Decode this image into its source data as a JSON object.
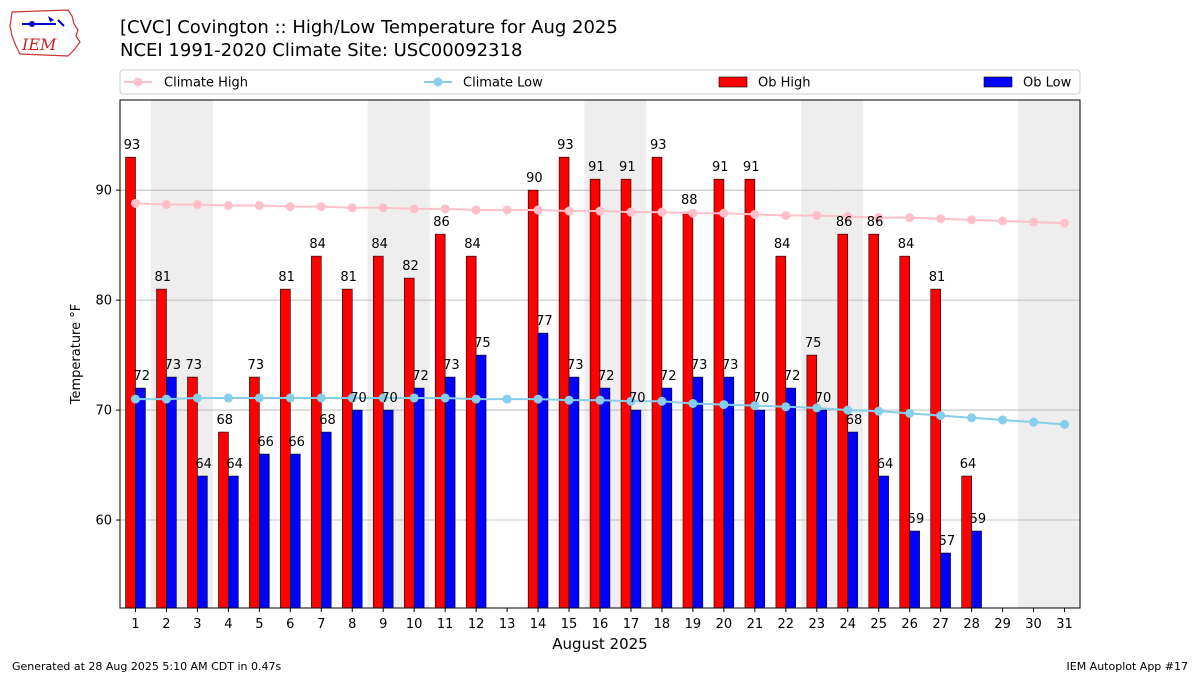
{
  "header": {
    "title_line1": "[CVC] Covington :: High/Low Temperature for Aug 2025",
    "title_line2": "NCEI 1991-2020 Climate Site: USC00092318",
    "logo_text": "IEM"
  },
  "footer": {
    "generated": "Generated at 28 Aug 2025 5:10 AM CDT in 0.47s",
    "app": "IEM Autoplot App #17"
  },
  "colors": {
    "ob_high": "#ff0000",
    "ob_low": "#0000ff",
    "climate_high": "#ffc0cb",
    "climate_low": "#87ceeb",
    "weekend_shade": "#eeeeee",
    "grid": "#b0b0b0"
  },
  "chart_data": {
    "type": "bar",
    "title": "[CVC] Covington :: High/Low Temperature for Aug 2025",
    "xlabel": "August 2025",
    "ylabel": "Temperature °F",
    "ylim": [
      52,
      98.2
    ],
    "yticks": [
      60,
      70,
      80,
      90
    ],
    "grid": true,
    "legend_position": "top",
    "categories": [
      "1",
      "2",
      "3",
      "4",
      "5",
      "6",
      "7",
      "8",
      "9",
      "10",
      "11",
      "12",
      "13",
      "14",
      "15",
      "16",
      "17",
      "18",
      "19",
      "20",
      "21",
      "22",
      "23",
      "24",
      "25",
      "26",
      "27",
      "28",
      "29",
      "30",
      "31"
    ],
    "shaded_days": [
      2,
      3,
      9,
      10,
      16,
      17,
      23,
      24,
      30,
      31
    ],
    "series": [
      {
        "name": "Ob High",
        "kind": "bar",
        "values": [
          93,
          81,
          73,
          68,
          73,
          81,
          84,
          81,
          84,
          82,
          86,
          84,
          null,
          90,
          93,
          91,
          91,
          93,
          88,
          91,
          91,
          84,
          75,
          86,
          86,
          84,
          81,
          64,
          null,
          null,
          null
        ]
      },
      {
        "name": "Ob Low",
        "kind": "bar",
        "values": [
          72,
          73,
          64,
          64,
          66,
          66,
          68,
          70,
          70,
          72,
          73,
          75,
          null,
          77,
          73,
          72,
          70,
          72,
          73,
          73,
          70,
          72,
          70,
          68,
          64,
          59,
          57,
          59,
          null,
          null,
          null
        ]
      },
      {
        "name": "Climate High",
        "kind": "line",
        "values": [
          88.8,
          88.7,
          88.7,
          88.6,
          88.6,
          88.5,
          88.5,
          88.4,
          88.4,
          88.3,
          88.3,
          88.2,
          88.2,
          88.2,
          88.1,
          88.1,
          88.0,
          88.0,
          87.9,
          87.9,
          87.8,
          87.7,
          87.7,
          87.6,
          87.5,
          87.5,
          87.4,
          87.3,
          87.2,
          87.1,
          87.0
        ]
      },
      {
        "name": "Climate Low",
        "kind": "line",
        "values": [
          71.0,
          71.0,
          71.1,
          71.1,
          71.1,
          71.1,
          71.1,
          71.1,
          71.1,
          71.1,
          71.1,
          71.0,
          71.0,
          71.0,
          70.9,
          70.9,
          70.8,
          70.8,
          70.6,
          70.5,
          70.4,
          70.3,
          70.2,
          70.0,
          69.9,
          69.7,
          69.5,
          69.3,
          69.1,
          68.9,
          68.7
        ]
      }
    ],
    "legend": [
      "Climate High",
      "Climate Low",
      "Ob High",
      "Ob Low"
    ]
  }
}
